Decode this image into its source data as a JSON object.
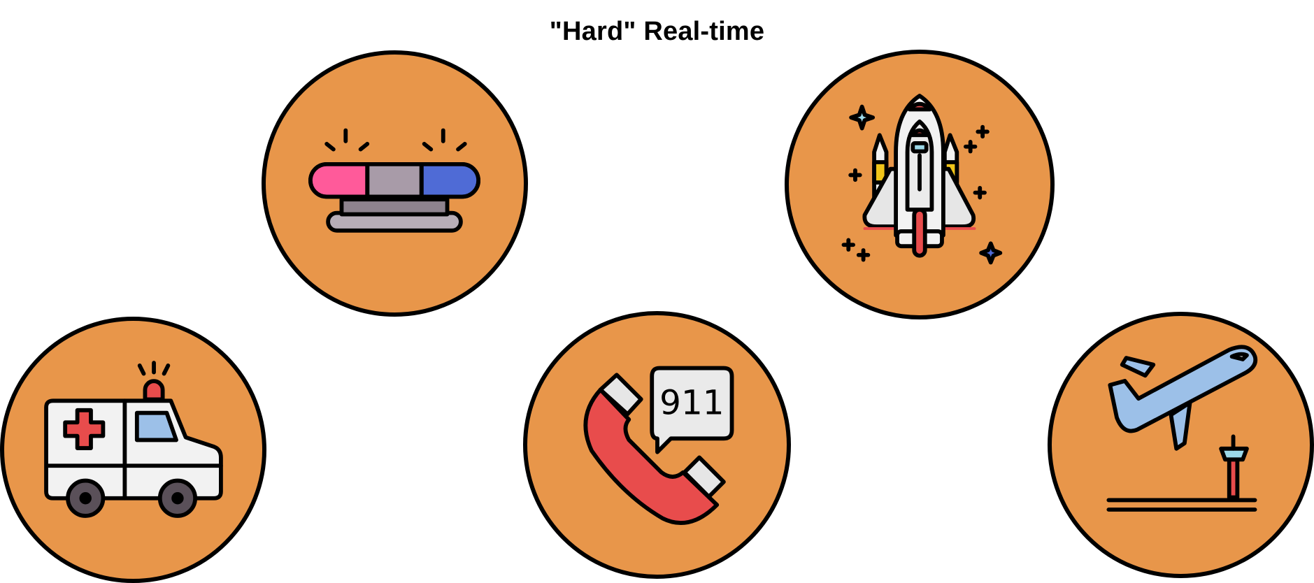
{
  "title": "\"Hard\" Real-time",
  "icons": [
    {
      "id": "siren",
      "icon": "police-siren-icon"
    },
    {
      "id": "shuttle",
      "icon": "space-shuttle-icon"
    },
    {
      "id": "ambulance",
      "icon": "ambulance-icon"
    },
    {
      "id": "emergency-call",
      "icon": "emergency-call-icon",
      "bubble_text": "911"
    },
    {
      "id": "airplane",
      "icon": "airplane-takeoff-icon"
    }
  ],
  "colors": {
    "circle_fill": "#e8964a",
    "outline": "#000000",
    "red": "#e84c4c",
    "pink": "#ff5a9a",
    "blue": "#4f6bd6",
    "light_blue": "#9cc0e8",
    "gray": "#a89ba8",
    "white": "#f2f2f2",
    "yellow": "#f0c419"
  }
}
